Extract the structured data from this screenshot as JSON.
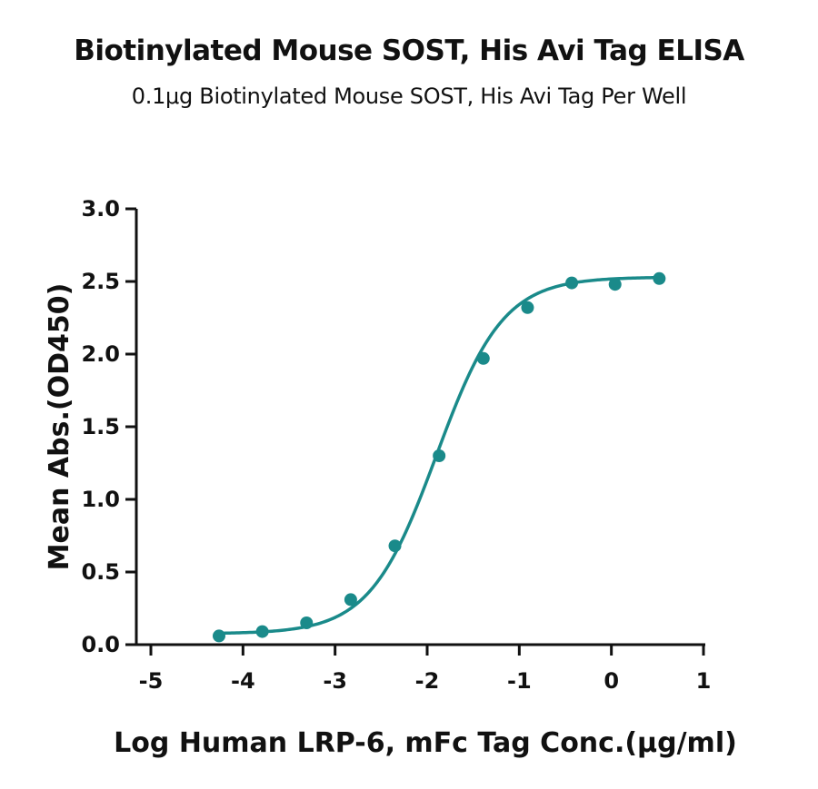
{
  "header": {
    "title": "Biotinylated Mouse SOST, His Avi Tag ELISA",
    "subtitle": "0.1μg Biotinylated Mouse SOST, His Avi Tag Per Well"
  },
  "colors": {
    "series": "#1a8a8a",
    "axis": "#111111"
  },
  "chart_data": {
    "type": "scatter",
    "title": "Biotinylated Mouse SOST, His Avi Tag ELISA",
    "subtitle": "0.1μg Biotinylated Mouse SOST, His Avi Tag Per Well",
    "xlabel": "Log Human LRP-6, mFc Tag Conc.(μg/ml)",
    "ylabel": "Mean Abs.(OD450)",
    "xlim": [
      -5,
      1
    ],
    "ylim": [
      0,
      3.0
    ],
    "x_ticks": [
      "-5",
      "-4",
      "-3",
      "-2",
      "-1",
      "0",
      "1"
    ],
    "y_ticks": [
      "0.0",
      "0.5",
      "1.0",
      "1.5",
      "2.0",
      "2.5",
      "3.0"
    ],
    "grid": false,
    "legend": "none",
    "series": [
      {
        "x": [
          -4.26,
          -3.79,
          -3.31,
          -2.83,
          -2.35,
          -1.87,
          -1.39,
          -0.91,
          -0.43,
          0.04,
          0.52
        ],
        "y": [
          0.06,
          0.09,
          0.15,
          0.31,
          0.68,
          1.3,
          1.97,
          2.32,
          2.49,
          2.48,
          2.52
        ],
        "fit": {
          "model": "4PL",
          "bottom": 0.075,
          "top": 2.53,
          "log_ec50": -1.9,
          "hill": 1.2,
          "x_range": [
            -4.26,
            0.52
          ]
        }
      }
    ]
  }
}
